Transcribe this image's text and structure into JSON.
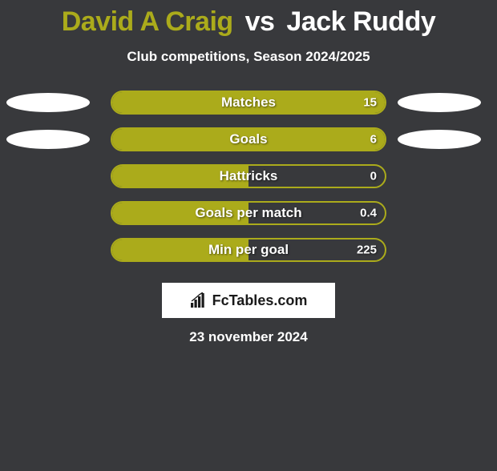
{
  "title": {
    "player1": "David A Craig",
    "vs": "vs",
    "player2": "Jack Ruddy",
    "player1_color": "#abab1b",
    "vs_color": "#ffffff",
    "player2_color": "#ffffff",
    "fontsize": 34
  },
  "subtitle": "Club competitions, Season 2024/2025",
  "date": "23 november 2024",
  "background_color": "#38393c",
  "bar_color": "#abab1b",
  "ellipse_color": "#ffffff",
  "text_color": "#ffffff",
  "chart": {
    "type": "horizontal-bar-comparison",
    "track_width": 344,
    "track_height": 30,
    "border_radius": 16,
    "rows": [
      {
        "label": "Matches",
        "left_value": null,
        "right_value": "15",
        "fill_side": "left",
        "fill_pct": 100,
        "show_left_ellipse": true,
        "show_right_ellipse": true
      },
      {
        "label": "Goals",
        "left_value": null,
        "right_value": "6",
        "fill_side": "left",
        "fill_pct": 100,
        "show_left_ellipse": true,
        "show_right_ellipse": true
      },
      {
        "label": "Hattricks",
        "left_value": null,
        "right_value": "0",
        "fill_side": "left",
        "fill_pct": 50,
        "show_left_ellipse": false,
        "show_right_ellipse": false
      },
      {
        "label": "Goals per match",
        "left_value": null,
        "right_value": "0.4",
        "fill_side": "left",
        "fill_pct": 50,
        "show_left_ellipse": false,
        "show_right_ellipse": false
      },
      {
        "label": "Min per goal",
        "left_value": null,
        "right_value": "225",
        "fill_side": "left",
        "fill_pct": 50,
        "show_left_ellipse": false,
        "show_right_ellipse": false
      }
    ]
  },
  "logo": {
    "text": "FcTables.com"
  }
}
